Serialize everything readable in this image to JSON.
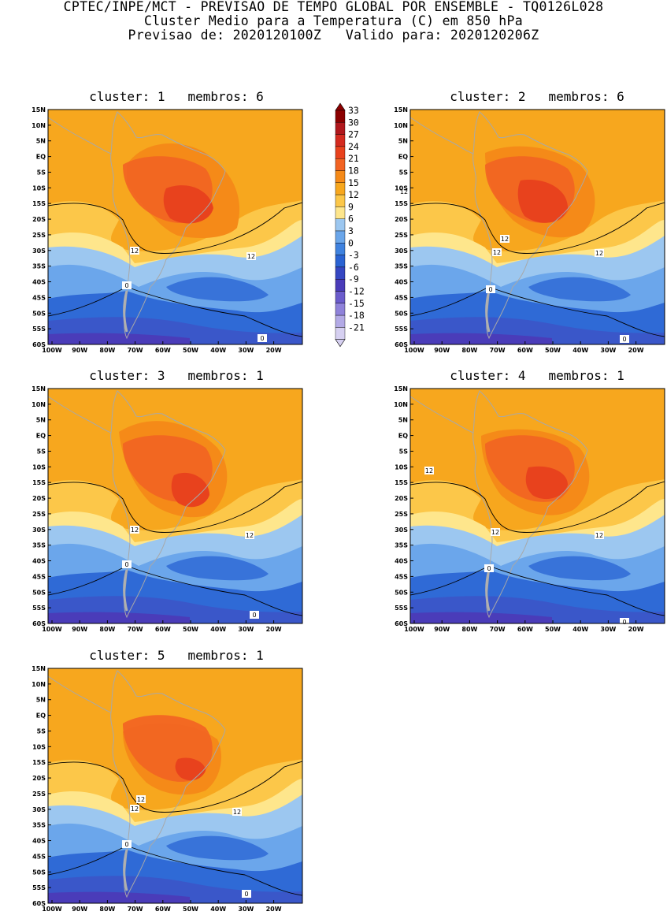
{
  "header": {
    "line1": "CPTEC/INPE/MCT - PREVISAO DE TEMPO GLOBAL POR ENSEMBLE - TQ0126L028",
    "line2": "Cluster Medio para a Temperatura (C) em 850 hPa",
    "line3": "Previsao de: 2020120100Z   Valido para: 2020120206Z"
  },
  "lat_labels": [
    "15N",
    "10N",
    "5N",
    "EQ",
    "5S",
    "10S",
    "15S",
    "20S",
    "25S",
    "30S",
    "35S",
    "40S",
    "45S",
    "50S",
    "55S",
    "60S"
  ],
  "lon_labels": [
    "100W",
    "90W",
    "80W",
    "70W",
    "60W",
    "50W",
    "40W",
    "30W",
    "20W"
  ],
  "colorbar": {
    "levels": [
      "33",
      "30",
      "27",
      "24",
      "21",
      "18",
      "15",
      "12",
      "9",
      "6",
      "3",
      "0",
      "-3",
      "-6",
      "-9",
      "-12",
      "-15",
      "-18",
      "-21"
    ],
    "colors": [
      "#8b0000",
      "#b0171c",
      "#d42a1f",
      "#e8421d",
      "#f26322",
      "#f58a18",
      "#f7a71e",
      "#fcc749",
      "#fee68c",
      "#9cc7f0",
      "#6aa6ea",
      "#3f82df",
      "#2a63d3",
      "#3547c2",
      "#4a3cb9",
      "#6b5ccc",
      "#8f82da",
      "#b3aae6",
      "#d6d0f1"
    ]
  },
  "palette": {
    "ocean_dark": "#3a57c9",
    "ocean_mid": "#2f6ad6",
    "ocean_light": "#6ba6eb",
    "pale_blue": "#9cc7f0",
    "yellow": "#fee68c",
    "light_orange": "#fcc749",
    "orange": "#f7a71e",
    "deep_orange": "#f58a18",
    "red_orange": "#f26322",
    "red": "#e8421d",
    "purple": "#4a3cb9",
    "land_outline": "#a8a8a8"
  },
  "panels": [
    {
      "title": "cluster: 1   membros: 6",
      "contour_labels": [
        "12",
        "12",
        "0",
        "0"
      ]
    },
    {
      "title": "cluster: 2   membros: 6",
      "contour_labels": [
        "12",
        "12",
        "12",
        "12",
        "0",
        "0"
      ]
    },
    {
      "title": "cluster: 3   membros: 1",
      "contour_labels": [
        "12",
        "12",
        "0",
        "0"
      ]
    },
    {
      "title": "cluster: 4   membros: 1",
      "contour_labels": [
        "12",
        "12",
        "12",
        "0",
        "0"
      ]
    },
    {
      "title": "cluster: 5   membros: 1",
      "contour_labels": [
        "12",
        "12",
        "12",
        "0",
        "0"
      ]
    }
  ]
}
